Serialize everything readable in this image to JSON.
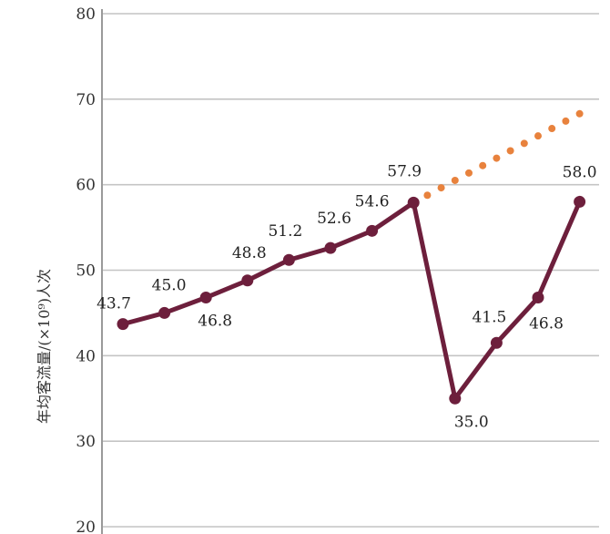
{
  "chart_data": {
    "type": "line",
    "ylabel": "年均客流量/(×10⁹)人次",
    "ylim": [
      20,
      80
    ],
    "yticks": [
      "20",
      "30",
      "40",
      "50",
      "60",
      "70",
      "80"
    ],
    "grid": true,
    "series": [
      {
        "type": "line",
        "color": "#6d1f3c",
        "marker": "circle",
        "points": [
          {
            "x": 0,
            "y": 43.7,
            "label": "43.7"
          },
          {
            "x": 1,
            "y": 45.0,
            "label": "45.0"
          },
          {
            "x": 2,
            "y": 46.8,
            "label": "46.8"
          },
          {
            "x": 3,
            "y": 48.8,
            "label": "48.8"
          },
          {
            "x": 4,
            "y": 51.2,
            "label": "51.2"
          },
          {
            "x": 5,
            "y": 52.6,
            "label": "52.6"
          },
          {
            "x": 6,
            "y": 54.6,
            "label": "54.6"
          },
          {
            "x": 7,
            "y": 57.9,
            "label": "57.9"
          },
          {
            "x": 8,
            "y": 35.0,
            "label": "35.0"
          },
          {
            "x": 9,
            "y": 41.5,
            "label": "41.5"
          },
          {
            "x": 10,
            "y": 46.8,
            "label": "46.8"
          },
          {
            "x": 11,
            "y": 58.0,
            "label": "58.0"
          }
        ]
      },
      {
        "type": "dotted",
        "color": "#e8823d",
        "points": [
          {
            "x": 7,
            "y": 57.9
          },
          {
            "x": 11,
            "y": 68.3
          }
        ]
      }
    ]
  }
}
